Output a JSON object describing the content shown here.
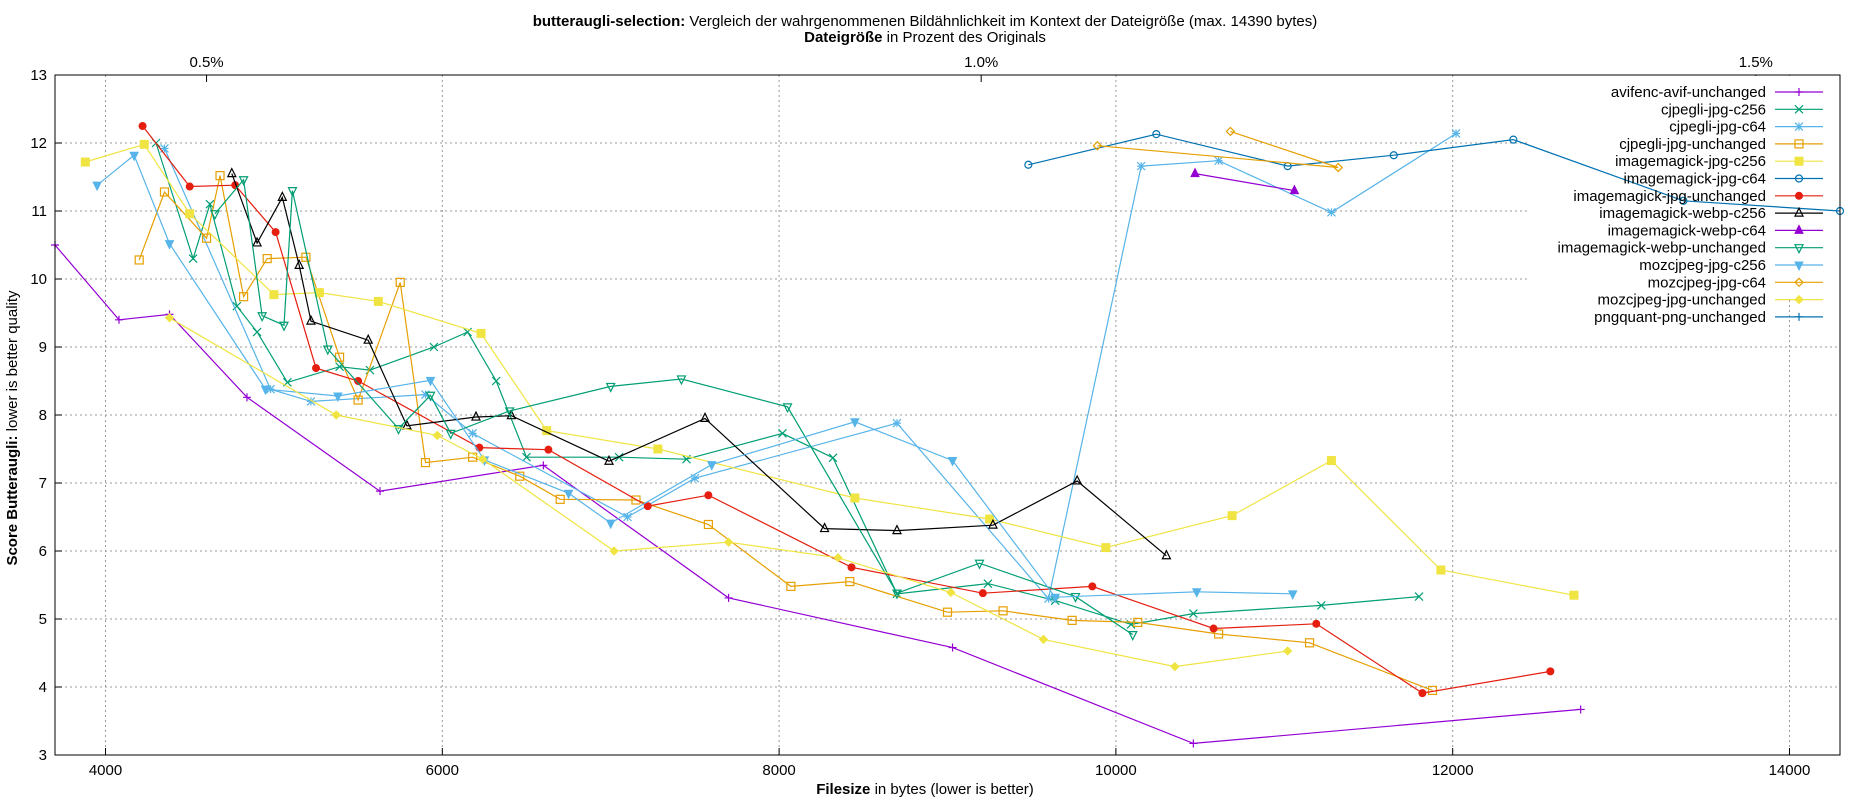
{
  "chart_data": {
    "type": "line",
    "title_bold": "butteraugli-selection:",
    "title_rest": " Vergleich der wahrgenommenen Bildähnlichkeit im Kontext der Dateigröße (max. 14390 bytes)",
    "x2label_bold": "Dateigröße",
    "x2label_rest": " in Prozent des Originals",
    "xlabel_bold": "Filesize",
    "xlabel_rest": " in bytes (lower is better)",
    "ylabel_bold": "Score Butteraugli:",
    "ylabel_rest": " lower is better quality",
    "xlim": [
      3700,
      14300
    ],
    "ylim": [
      3,
      13
    ],
    "xticks": [
      4000,
      6000,
      8000,
      10000,
      12000,
      14000
    ],
    "yticks": [
      3,
      4,
      5,
      6,
      7,
      8,
      9,
      10,
      11,
      12,
      13
    ],
    "x2ticks": [
      {
        "label": "0.5%",
        "value": 4600
      },
      {
        "label": "1.0%",
        "value": 9200
      },
      {
        "label": "1.5%",
        "value": 13800
      }
    ],
    "grid": true,
    "legend_position": "top-right",
    "series": [
      {
        "name": "avifenc-avif-unchanged",
        "color": "#9400d3",
        "marker": "plus",
        "points": [
          [
            3700,
            10.5
          ],
          [
            4080,
            9.4
          ],
          [
            4380,
            9.48
          ],
          [
            4840,
            8.26
          ],
          [
            5630,
            6.88
          ],
          [
            6600,
            7.26
          ],
          [
            7700,
            5.31
          ],
          [
            9030,
            4.58
          ],
          [
            10460,
            3.17
          ],
          [
            12760,
            3.67
          ]
        ]
      },
      {
        "name": "cjpegli-jpg-c256",
        "color": "#009e73",
        "marker": "x",
        "points": [
          [
            4300,
            12.0
          ],
          [
            4520,
            10.3
          ],
          [
            4620,
            11.1
          ],
          [
            4780,
            9.6
          ],
          [
            4900,
            9.22
          ],
          [
            5080,
            8.48
          ],
          [
            5390,
            8.71
          ],
          [
            5570,
            8.66
          ],
          [
            5950,
            9.0
          ],
          [
            6150,
            9.22
          ],
          [
            6320,
            8.5
          ],
          [
            6500,
            7.38
          ],
          [
            7050,
            7.38
          ],
          [
            7450,
            7.35
          ],
          [
            8020,
            7.73
          ],
          [
            8320,
            7.37
          ],
          [
            8700,
            5.37
          ],
          [
            9240,
            5.52
          ],
          [
            9640,
            5.27
          ],
          [
            10090,
            4.92
          ],
          [
            10460,
            5.08
          ],
          [
            11220,
            5.2
          ],
          [
            11800,
            5.33
          ]
        ]
      },
      {
        "name": "cjpegli-jpg-c64",
        "color": "#56b4e9",
        "marker": "star",
        "points": [
          [
            4350,
            11.92
          ],
          [
            4980,
            8.38
          ],
          [
            5220,
            8.2
          ],
          [
            5900,
            8.3
          ],
          [
            6180,
            7.73
          ],
          [
            7100,
            6.5
          ],
          [
            7500,
            7.07
          ],
          [
            8700,
            7.88
          ],
          [
            9600,
            5.3
          ],
          [
            10150,
            11.66
          ],
          [
            10610,
            11.74
          ],
          [
            11280,
            10.98
          ],
          [
            12020,
            12.14
          ]
        ]
      },
      {
        "name": "cjpegli-jpg-unchanged",
        "color": "#e69f00",
        "marker": "square",
        "points": [
          [
            4200,
            10.28
          ],
          [
            4350,
            11.28
          ],
          [
            4600,
            10.6
          ],
          [
            4680,
            11.52
          ],
          [
            4820,
            9.74
          ],
          [
            4960,
            10.3
          ],
          [
            5190,
            10.32
          ],
          [
            5390,
            8.85
          ],
          [
            5500,
            8.22
          ],
          [
            5750,
            9.95
          ],
          [
            5900,
            7.3
          ],
          [
            6180,
            7.38
          ],
          [
            6460,
            7.1
          ],
          [
            6700,
            6.76
          ],
          [
            7150,
            6.75
          ],
          [
            7580,
            6.39
          ],
          [
            8070,
            5.48
          ],
          [
            8420,
            5.55
          ],
          [
            9000,
            5.1
          ],
          [
            9330,
            5.12
          ],
          [
            9740,
            4.98
          ],
          [
            10130,
            4.95
          ],
          [
            10610,
            4.78
          ],
          [
            11150,
            4.65
          ],
          [
            11880,
            3.95
          ]
        ]
      },
      {
        "name": "imagemagick-jpg-c256",
        "color": "#f0e442",
        "marker": "filled-square",
        "points": [
          [
            3880,
            11.72
          ],
          [
            4230,
            11.98
          ],
          [
            4500,
            10.96
          ],
          [
            5000,
            9.77
          ],
          [
            5270,
            9.8
          ],
          [
            5620,
            9.67
          ],
          [
            6230,
            9.2
          ],
          [
            6620,
            7.77
          ],
          [
            7280,
            7.5
          ],
          [
            8450,
            6.78
          ],
          [
            9250,
            6.47
          ],
          [
            9940,
            6.05
          ],
          [
            10690,
            6.52
          ],
          [
            11280,
            7.33
          ],
          [
            11930,
            5.72
          ],
          [
            12720,
            5.35
          ]
        ]
      },
      {
        "name": "imagemagick-jpg-c64",
        "color": "#0072b2",
        "marker": "circle",
        "points": [
          [
            9480,
            11.68
          ],
          [
            10240,
            12.13
          ],
          [
            11020,
            11.66
          ],
          [
            11650,
            11.82
          ],
          [
            12360,
            12.05
          ],
          [
            13370,
            11.15
          ],
          [
            14300,
            11.0
          ]
        ]
      },
      {
        "name": "imagemagick-jpg-unchanged",
        "color": "#e51e10",
        "marker": "filled-circle",
        "points": [
          [
            4220,
            12.25
          ],
          [
            4500,
            11.36
          ],
          [
            4770,
            11.38
          ],
          [
            5010,
            10.69
          ],
          [
            5250,
            8.69
          ],
          [
            5500,
            8.5
          ],
          [
            6220,
            7.52
          ],
          [
            6630,
            7.49
          ],
          [
            7220,
            6.66
          ],
          [
            7580,
            6.82
          ],
          [
            8430,
            5.76
          ],
          [
            9210,
            5.38
          ],
          [
            9860,
            5.48
          ],
          [
            10580,
            4.86
          ],
          [
            11190,
            4.93
          ],
          [
            11820,
            3.91
          ],
          [
            12580,
            4.23
          ]
        ]
      },
      {
        "name": "imagemagick-webp-c256",
        "color": "#000000",
        "marker": "triangle",
        "points": [
          [
            4750,
            11.55
          ],
          [
            4900,
            10.53
          ],
          [
            5050,
            11.2
          ],
          [
            5150,
            10.2
          ],
          [
            5220,
            9.38
          ],
          [
            5560,
            9.1
          ],
          [
            5790,
            7.84
          ],
          [
            6200,
            7.97
          ],
          [
            6410,
            7.99
          ],
          [
            6990,
            7.32
          ],
          [
            7560,
            7.95
          ],
          [
            8270,
            6.33
          ],
          [
            8700,
            6.3
          ],
          [
            9270,
            6.38
          ],
          [
            9770,
            7.03
          ],
          [
            10300,
            5.93
          ]
        ]
      },
      {
        "name": "imagemagick-webp-c64",
        "color": "#9400d3",
        "marker": "filled-triangle",
        "points": [
          [
            10470,
            11.55
          ],
          [
            11060,
            11.3
          ]
        ]
      },
      {
        "name": "imagemagick-webp-unchanged",
        "color": "#009e73",
        "marker": "triangle-down",
        "points": [
          [
            4650,
            10.96
          ],
          [
            4820,
            11.46
          ],
          [
            4930,
            9.46
          ],
          [
            5060,
            9.32
          ],
          [
            5110,
            11.3
          ],
          [
            5320,
            8.97
          ],
          [
            5740,
            7.8
          ],
          [
            5930,
            8.29
          ],
          [
            6050,
            7.73
          ],
          [
            6400,
            8.06
          ],
          [
            7000,
            8.42
          ],
          [
            7420,
            8.53
          ],
          [
            8050,
            8.12
          ],
          [
            8700,
            5.38
          ],
          [
            9190,
            5.82
          ],
          [
            9760,
            5.33
          ],
          [
            10100,
            4.77
          ]
        ]
      },
      {
        "name": "mozcjpeg-jpg-c256",
        "color": "#56b4e9",
        "marker": "filled-triangle-down",
        "points": [
          [
            3950,
            11.38
          ],
          [
            4170,
            11.82
          ],
          [
            4380,
            10.52
          ],
          [
            4950,
            8.38
          ],
          [
            5380,
            8.28
          ],
          [
            5930,
            8.51
          ],
          [
            6250,
            7.34
          ],
          [
            6750,
            6.85
          ],
          [
            7000,
            6.41
          ],
          [
            7600,
            7.27
          ],
          [
            8450,
            7.9
          ],
          [
            9030,
            7.33
          ],
          [
            9640,
            5.32
          ],
          [
            10480,
            5.4
          ],
          [
            11050,
            5.37
          ]
        ]
      },
      {
        "name": "mozcjpeg-jpg-c64",
        "color": "#e69f00",
        "marker": "diamond",
        "points": [
          [
            10680,
            12.17
          ],
          [
            11320,
            11.64
          ],
          [
            9890,
            11.96
          ]
        ]
      },
      {
        "name": "mozcjpeg-jpg-unchanged",
        "color": "#f0e442",
        "marker": "filled-diamond",
        "points": [
          [
            4380,
            9.43
          ],
          [
            5370,
            8.0
          ],
          [
            5970,
            7.7
          ],
          [
            6240,
            7.35
          ],
          [
            7020,
            6.0
          ],
          [
            7700,
            6.13
          ],
          [
            8350,
            5.9
          ],
          [
            9020,
            5.39
          ],
          [
            9570,
            4.7
          ],
          [
            10350,
            4.3
          ],
          [
            11020,
            4.53
          ]
        ]
      },
      {
        "name": "pngquant-png-unchanged",
        "color": "#0072b2",
        "marker": "plus",
        "points": []
      }
    ]
  }
}
